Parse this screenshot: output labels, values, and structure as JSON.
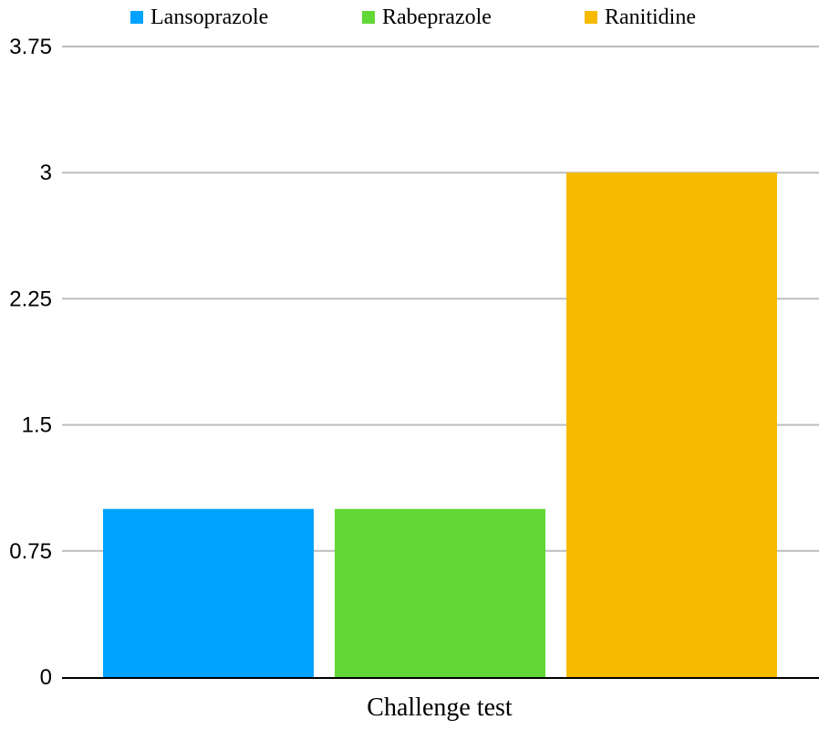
{
  "chart_data": {
    "type": "bar",
    "categories": [
      "Challenge test"
    ],
    "series": [
      {
        "name": "Lansoprazole",
        "values": [
          1
        ],
        "color": "#00A2FF"
      },
      {
        "name": "Rabeprazole",
        "values": [
          1
        ],
        "color": "#61D836"
      },
      {
        "name": "Ranitidine",
        "values": [
          3
        ],
        "color": "#F6BA00"
      }
    ],
    "yticks": [
      "0",
      "0.75",
      "1.5",
      "2.25",
      "3",
      "3.75"
    ],
    "ylim": [
      0,
      3.75
    ],
    "grid": true,
    "legend_position": "top"
  }
}
